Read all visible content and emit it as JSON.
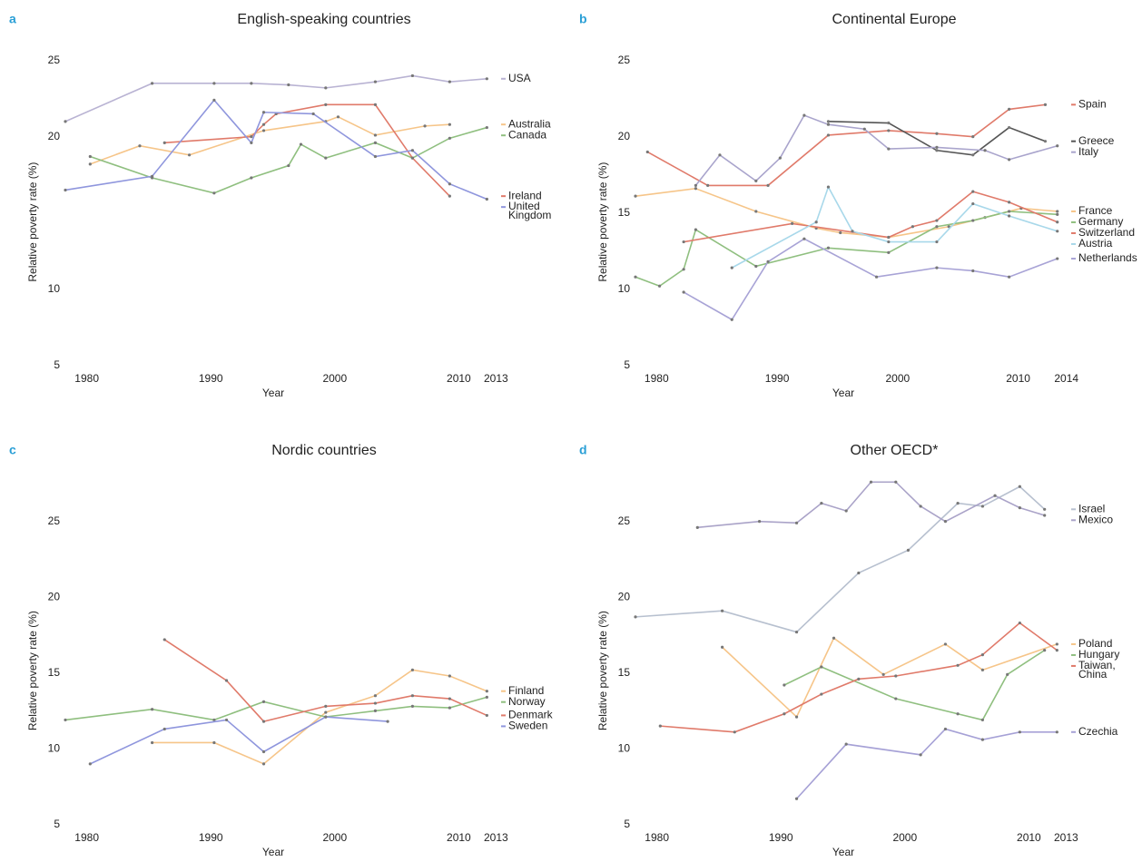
{
  "chart_data": [
    {
      "type": "line",
      "panel": "a",
      "title": "English-speaking countries",
      "x_label": "Year",
      "y_label": "Relative poverty rate (%)",
      "xlim": [
        1979,
        2014
      ],
      "ylim": [
        5,
        26
      ],
      "xticks": [
        1980,
        1990,
        2000,
        2010,
        2013
      ],
      "yticks": [
        5,
        10,
        20,
        25
      ],
      "series": [
        {
          "name": "USA",
          "color": "#b9b3d3",
          "x": [
            1979,
            1986,
            1991,
            1994,
            1997,
            2000,
            2004,
            2007,
            2010,
            2013
          ],
          "values": [
            21.2,
            23.7,
            23.7,
            23.7,
            23.6,
            23.4,
            23.8,
            24.2,
            23.8,
            24.0
          ]
        },
        {
          "name": "Australia",
          "color": "#f6c589",
          "x": [
            1981,
            1985,
            1989,
            1995,
            2000,
            2001,
            2004,
            2008,
            2010
          ],
          "values": [
            18.4,
            19.6,
            19.0,
            20.6,
            21.2,
            21.5,
            20.3,
            20.9,
            21.0
          ]
        },
        {
          "name": "Canada",
          "color": "#8fbf7f",
          "x": [
            1981,
            1986,
            1991,
            1994,
            1997,
            1998,
            2000,
            2004,
            2007,
            2010,
            2013
          ],
          "values": [
            18.9,
            17.5,
            16.5,
            17.5,
            18.3,
            19.7,
            18.8,
            19.8,
            18.8,
            20.1,
            20.8
          ]
        },
        {
          "name": "Ireland",
          "color": "#e07a6a",
          "x": [
            1987,
            1994,
            1995,
            1996,
            2000,
            2004,
            2007,
            2010
          ],
          "values": [
            19.8,
            20.2,
            21.0,
            21.7,
            22.3,
            22.3,
            18.8,
            16.3
          ]
        },
        {
          "name": "United Kingdom",
          "color": "#8f96dd",
          "x": [
            1979,
            1986,
            1991,
            1994,
            1995,
            1999,
            2004,
            2007,
            2010,
            2013
          ],
          "values": [
            16.7,
            17.6,
            22.6,
            19.8,
            21.8,
            21.7,
            18.9,
            19.3,
            17.1,
            16.1
          ]
        }
      ]
    },
    {
      "type": "line",
      "panel": "b",
      "title": "Continental Europe",
      "x_label": "Year",
      "y_label": "Relative poverty rate (%)",
      "xlim": [
        1979,
        2015
      ],
      "ylim": [
        5,
        26
      ],
      "xticks": [
        1980,
        1990,
        2000,
        2010,
        2014
      ],
      "yticks": [
        5,
        10,
        15,
        20,
        25
      ],
      "series": [
        {
          "name": "Spain",
          "color": "#e07a6a",
          "x": [
            1980,
            1985,
            1990,
            1995,
            2000,
            2004,
            2007,
            2010,
            2013
          ],
          "values": [
            19.2,
            17.0,
            17.0,
            20.3,
            20.6,
            20.4,
            20.2,
            22.0,
            22.3
          ]
        },
        {
          "name": "Greece",
          "color": "#555555",
          "x": [
            1995,
            2000,
            2004,
            2007,
            2010,
            2013
          ],
          "values": [
            21.2,
            21.1,
            19.3,
            19.0,
            20.8,
            19.9
          ]
        },
        {
          "name": "Italy",
          "color": "#a9a4cc",
          "x": [
            1984,
            1986,
            1989,
            1991,
            1993,
            1995,
            1998,
            2000,
            2004,
            2008,
            2010,
            2014
          ],
          "values": [
            17.0,
            19.0,
            17.3,
            18.8,
            21.6,
            21.0,
            20.7,
            19.4,
            19.5,
            19.3,
            18.7,
            19.6
          ]
        },
        {
          "name": "France",
          "color": "#f6c589",
          "x": [
            1979,
            1984,
            1989,
            1994,
            1996,
            2000,
            2005,
            2008,
            2011,
            2014
          ],
          "values": [
            16.3,
            16.8,
            15.3,
            14.2,
            13.9,
            13.6,
            14.3,
            14.9,
            15.5,
            15.3
          ]
        },
        {
          "name": "Germany",
          "color": "#8fbf7f",
          "x": [
            1979,
            1981,
            1983,
            1984,
            1989,
            1995,
            2000,
            2004,
            2007,
            2010,
            2014
          ],
          "values": [
            11.0,
            10.4,
            11.5,
            14.1,
            11.7,
            12.9,
            12.6,
            14.3,
            14.7,
            15.3,
            15.1
          ]
        },
        {
          "name": "Switzerland",
          "color": "#e07a6a",
          "x": [
            1983,
            1992,
            2000,
            2002,
            2004,
            2007,
            2010,
            2014
          ],
          "values": [
            13.3,
            14.5,
            13.6,
            14.3,
            14.7,
            16.6,
            15.9,
            14.6
          ]
        },
        {
          "name": "Austria",
          "color": "#a8d8ea",
          "x": [
            1987,
            1994,
            1995,
            1997,
            2000,
            2004,
            2007,
            2010,
            2014
          ],
          "values": [
            11.6,
            14.6,
            16.9,
            14.0,
            13.3,
            13.3,
            15.8,
            15.0,
            14.0
          ]
        },
        {
          "name": "Netherlands",
          "color": "#a8a3d6",
          "x": [
            1983,
            1987,
            1990,
            1993,
            1999,
            2004,
            2007,
            2010,
            2014
          ],
          "values": [
            10.0,
            8.2,
            12.0,
            13.5,
            11.0,
            11.6,
            11.4,
            11.0,
            12.2
          ]
        }
      ]
    },
    {
      "type": "line",
      "panel": "c",
      "title": "Nordic countries",
      "x_label": "Year",
      "y_label": "Relative poverty rate (%)",
      "xlim": [
        1979,
        2014
      ],
      "ylim": [
        5,
        27.5
      ],
      "xticks": [
        1980,
        1990,
        2000,
        2010,
        2013
      ],
      "yticks": [
        5,
        10,
        15,
        20,
        25
      ],
      "series": [
        {
          "name": "Finland",
          "color": "#f6c589",
          "x": [
            1986,
            1991,
            1995,
            2000,
            2004,
            2007,
            2010,
            2013
          ],
          "values": [
            10.6,
            10.6,
            9.2,
            12.6,
            13.7,
            15.4,
            15.0,
            14.0
          ]
        },
        {
          "name": "Norway",
          "color": "#8fbf7f",
          "x": [
            1979,
            1986,
            1991,
            1995,
            2000,
            2004,
            2007,
            2010,
            2013
          ],
          "values": [
            12.1,
            12.8,
            12.1,
            13.3,
            12.3,
            12.7,
            13.0,
            12.9,
            13.6
          ]
        },
        {
          "name": "Denmark",
          "color": "#e07a6a",
          "x": [
            1987,
            1992,
            1995,
            2000,
            2004,
            2007,
            2010,
            2013
          ],
          "values": [
            17.4,
            14.7,
            12.0,
            13.0,
            13.2,
            13.7,
            13.5,
            12.4
          ]
        },
        {
          "name": "Sweden",
          "color": "#8f96dd",
          "x": [
            1981,
            1987,
            1992,
            1995,
            2000,
            2005
          ],
          "values": [
            9.2,
            11.5,
            12.1,
            10.0,
            12.3,
            12.0
          ]
        }
      ]
    },
    {
      "type": "line",
      "panel": "d",
      "title": "Other OECD*",
      "x_label": "Year",
      "y_label": "Relative poverty rate (%)",
      "xlim": [
        1979,
        2014
      ],
      "ylim": [
        5,
        27.5
      ],
      "xticks": [
        1980,
        1990,
        2000,
        2010,
        2013
      ],
      "yticks": [
        5,
        10,
        15,
        20,
        25
      ],
      "series": [
        {
          "name": "Israel",
          "color": "#b7c0cf",
          "x": [
            1979,
            1986,
            1992,
            1997,
            2001,
            2005,
            2007,
            2010,
            2012
          ],
          "values": [
            18.9,
            19.3,
            17.9,
            21.8,
            23.3,
            26.4,
            26.2,
            27.5,
            26.0
          ]
        },
        {
          "name": "Mexico",
          "color": "#aaa3c8",
          "x": [
            1984,
            1989,
            1992,
            1994,
            1996,
            1998,
            2000,
            2002,
            2004,
            2008,
            2010,
            2012
          ],
          "values": [
            24.8,
            25.2,
            25.1,
            26.4,
            25.9,
            27.8,
            27.8,
            26.2,
            25.2,
            26.9,
            26.1,
            25.6
          ]
        },
        {
          "name": "Poland",
          "color": "#f6c589",
          "x": [
            1986,
            1992,
            1995,
            1999,
            2004,
            2007,
            2013
          ],
          "values": [
            16.9,
            12.3,
            17.5,
            15.1,
            17.1,
            15.4,
            17.1
          ]
        },
        {
          "name": "Hungary",
          "color": "#8fbf7f",
          "x": [
            1991,
            1994,
            2000,
            2005,
            2007,
            2009,
            2012
          ],
          "values": [
            14.4,
            15.6,
            13.5,
            12.5,
            12.1,
            15.1,
            16.7
          ]
        },
        {
          "name": "Taiwan, China",
          "color": "#e07a6a",
          "x": [
            1981,
            1987,
            1991,
            1994,
            1997,
            2000,
            2005,
            2007,
            2010,
            2013
          ],
          "values": [
            11.7,
            11.3,
            12.5,
            13.8,
            14.8,
            15.0,
            15.7,
            16.4,
            18.5,
            16.7
          ]
        },
        {
          "name": "Czechia",
          "color": "#a6a1d6",
          "x": [
            1992,
            1996,
            2002,
            2004,
            2007,
            2010,
            2013
          ],
          "values": [
            6.9,
            10.5,
            9.8,
            11.5,
            10.8,
            11.3,
            11.3
          ]
        }
      ]
    }
  ]
}
